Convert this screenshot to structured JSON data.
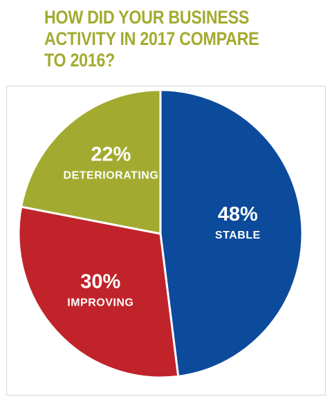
{
  "title_lines": [
    "HOW DID YOUR BUSINESS",
    "ACTIVITY IN 2017 COMPARE",
    "TO 2016?"
  ],
  "colors": {
    "title": "#a2ab2f",
    "stable": "#0c4a9b",
    "improving": "#c0242a",
    "deteriorating": "#a2ab2f",
    "slice_border": "#ffffff",
    "label_text": "#ffffff"
  },
  "chart_data": {
    "type": "pie",
    "title": "HOW DID YOUR BUSINESS ACTIVITY IN 2017 COMPARE TO 2016?",
    "start_angle": "12 o'clock",
    "direction": "clockwise",
    "slices": [
      {
        "label": "STABLE",
        "value": 48,
        "value_label": "48%",
        "color": "#0c4a9b"
      },
      {
        "label": "IMPROVING",
        "value": 30,
        "value_label": "30%",
        "color": "#c0242a"
      },
      {
        "label": "DETERIORATING",
        "value": 22,
        "value_label": "22%",
        "color": "#a2ab2f"
      }
    ]
  }
}
